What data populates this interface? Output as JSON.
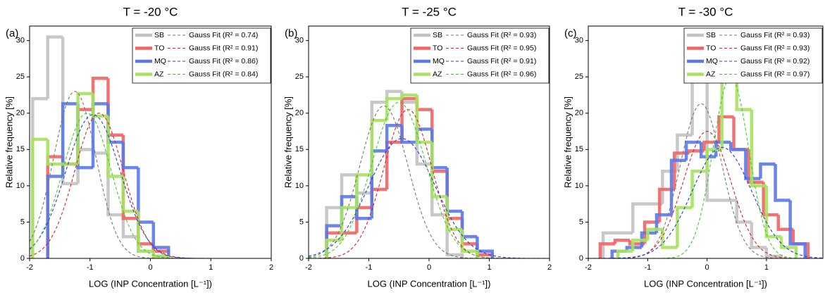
{
  "chart_data": [
    {
      "type": "histogram",
      "title": "T = -20 °C",
      "panel_label": "(a)",
      "x_label": "LOG (INP Concentration [L⁻¹])",
      "y_label": "Relative frequency [%]",
      "xlim": [
        -2,
        2
      ],
      "ylim": [
        0,
        32
      ],
      "xticks": [
        -2,
        -1,
        0,
        1,
        2
      ],
      "yticks": [
        0,
        5,
        10,
        15,
        20,
        25,
        30
      ],
      "series": [
        {
          "name": "SB",
          "color": "#c2c2c2",
          "bins": [
            -1.95,
            -1.7,
            -1.45,
            -1.2,
            -0.95,
            -0.7,
            -0.45,
            -0.2,
            0.05,
            0.3
          ],
          "values": [
            22,
            30.5,
            10.3,
            15,
            14.5,
            6,
            3,
            1,
            0.3
          ],
          "fit_label": "Gauss Fit (R² = 0.74)",
          "fit": {
            "peak": 23,
            "center": -1.25,
            "sigma": 0.35
          }
        },
        {
          "name": "TO",
          "color": "#f26464",
          "bins": [
            -1.7,
            -1.45,
            -1.2,
            -0.95,
            -0.7,
            -0.45,
            -0.2,
            0.05,
            0.3
          ],
          "values": [
            14,
            13,
            20.5,
            24.8,
            17,
            5.5,
            2,
            1
          ],
          "fit_label": "Gauss Fit (R² = 0.91)",
          "fit": {
            "peak": 20,
            "center": -0.85,
            "sigma": 0.4
          }
        },
        {
          "name": "MQ",
          "color": "#5a78ea",
          "bins": [
            -1.7,
            -1.45,
            -1.2,
            -0.95,
            -0.7,
            -0.45,
            -0.2,
            0.05,
            0.3
          ],
          "values": [
            11.3,
            21.3,
            12.5,
            21.3,
            16,
            12.5,
            5,
            1.5
          ],
          "fit_label": "Gauss Fit (R² = 0.86)",
          "fit": {
            "peak": 19.8,
            "center": -0.95,
            "sigma": 0.45
          }
        },
        {
          "name": "AZ",
          "color": "#a6e25e",
          "bins": [
            -1.95,
            -1.7,
            -1.45,
            -1.2,
            -0.95,
            -0.7,
            -0.45,
            -0.2,
            0.05,
            0.3
          ],
          "values": [
            16.4,
            13,
            13,
            22.7,
            19.6,
            11.3,
            6.5,
            1,
            0.3
          ],
          "fit_label": "Gauss Fit (R² = 0.84)",
          "fit": {
            "peak": 20,
            "center": -1.05,
            "sigma": 0.4
          }
        }
      ]
    },
    {
      "type": "histogram",
      "title": "T = -25 °C",
      "panel_label": "(b)",
      "x_label": "LOG (INP Concentration [L⁻¹])",
      "y_label": "Relative frequency [%]",
      "xlim": [
        -2,
        2
      ],
      "ylim": [
        0,
        32
      ],
      "xticks": [
        -2,
        -1,
        0,
        1,
        2
      ],
      "yticks": [
        0,
        5,
        10,
        15,
        20,
        25,
        30
      ],
      "series": [
        {
          "name": "SB",
          "color": "#c2c2c2",
          "bins": [
            -1.7,
            -1.45,
            -1.2,
            -0.95,
            -0.7,
            -0.45,
            -0.2,
            0.05,
            0.3,
            0.55
          ],
          "values": [
            7,
            11.5,
            9,
            21.5,
            23,
            21.5,
            13,
            6,
            0.5
          ],
          "fit_label": "Gauss Fit (R² = 0.93)",
          "fit": {
            "peak": 21,
            "center": -0.75,
            "sigma": 0.4
          }
        },
        {
          "name": "TO",
          "color": "#f26464",
          "bins": [
            -1.7,
            -1.45,
            -1.2,
            -0.95,
            -0.7,
            -0.45,
            -0.2,
            0.05,
            0.3,
            0.55,
            0.8,
            1.05
          ],
          "values": [
            3.5,
            3.5,
            7,
            9.5,
            16,
            22,
            20.5,
            12,
            5.5,
            2,
            0.5
          ],
          "fit_label": "Gauss Fit (R² = 0.95)",
          "fit": {
            "peak": 20.5,
            "center": -0.35,
            "sigma": 0.4
          }
        },
        {
          "name": "MQ",
          "color": "#5a78ea",
          "bins": [
            -1.7,
            -1.45,
            -1.2,
            -0.95,
            -0.7,
            -0.45,
            -0.2,
            0.05,
            0.3,
            0.55,
            0.8,
            1.05
          ],
          "values": [
            4.5,
            8.5,
            5.5,
            14.8,
            18.3,
            16,
            17.8,
            12.5,
            6.5,
            3,
            1
          ],
          "fit_label": "Gauss Fit (R² = 0.91)",
          "fit": {
            "peak": 16.5,
            "center": -0.45,
            "sigma": 0.55
          }
        },
        {
          "name": "AZ",
          "color": "#a6e25e",
          "bins": [
            -1.7,
            -1.45,
            -1.2,
            -0.95,
            -0.7,
            -0.45,
            -0.2,
            0.05,
            0.3,
            0.55,
            0.8
          ],
          "values": [
            2.5,
            7,
            11.5,
            19,
            22,
            22.5,
            16,
            8.5,
            4,
            1
          ],
          "fit_label": "Gauss Fit (R² = 0.96)",
          "fit": {
            "peak": 21.5,
            "center": -0.5,
            "sigma": 0.45
          }
        }
      ]
    },
    {
      "type": "histogram",
      "title": "T = -30 °C",
      "panel_label": "(c)",
      "x_label": "LOG (INP Concentration [L⁻¹])",
      "y_label": "Relative frequency [%]",
      "xlim": [
        -2,
        1.95
      ],
      "ylim": [
        0,
        32
      ],
      "xticks": [
        -2,
        -1,
        0,
        1
      ],
      "yticks": [
        0,
        5,
        10,
        15,
        20,
        25,
        30
      ],
      "series": [
        {
          "name": "SB",
          "color": "#c2c2c2",
          "bins": [
            -1.75,
            -1.5,
            -1.25,
            -1,
            -0.75,
            -0.5,
            -0.25,
            0,
            0.25,
            0.5,
            0.75,
            1,
            1.25
          ],
          "values": [
            3.5,
            3.5,
            7.5,
            7.5,
            12,
            17,
            24.3,
            8,
            8,
            5,
            1.5,
            0.3
          ],
          "fit_label": "Gauss Fit (R² = 0.93)",
          "fit": {
            "peak": 21.3,
            "center": -0.1,
            "sigma": 0.35
          }
        },
        {
          "name": "TO",
          "color": "#f26464",
          "bins": [
            -1.8,
            -1.55,
            -1.3,
            -1.05,
            -0.8,
            -0.55,
            -0.3,
            -0.05,
            0.2,
            0.45,
            0.7,
            0.95,
            1.2,
            1.45,
            1.7
          ],
          "values": [
            2,
            2.5,
            2,
            5,
            9.5,
            14.5,
            14.8,
            16,
            19.5,
            15,
            10.5,
            6,
            4,
            2
          ],
          "fit_label": "Gauss Fit (R² = 0.93)",
          "fit": {
            "peak": 17.5,
            "center": 0,
            "sigma": 0.4
          }
        },
        {
          "name": "MQ",
          "color": "#5a78ea",
          "bins": [
            -1.6,
            -1.35,
            -1.1,
            -0.85,
            -0.6,
            -0.35,
            -0.1,
            0.15,
            0.4,
            0.65,
            0.9,
            1.15,
            1.4,
            1.65
          ],
          "values": [
            1,
            1.5,
            3.5,
            6,
            13.5,
            16,
            14,
            16,
            15,
            11,
            13,
            8,
            2
          ],
          "fit_label": "Gauss Fit (R² = 0.92)",
          "fit": {
            "peak": 15.3,
            "center": 0.25,
            "sigma": 0.5
          }
        },
        {
          "name": "AZ",
          "color": "#a6e25e",
          "bins": [
            -1.5,
            -1.25,
            -1,
            -0.75,
            -0.5,
            -0.25,
            0,
            0.25,
            0.5,
            0.75,
            1,
            1.25,
            1.5
          ],
          "values": [
            1,
            2.5,
            4,
            1.5,
            7,
            12,
            15,
            24.5,
            20.5,
            10,
            3,
            1.5
          ],
          "fit_label": "Gauss Fit (R² = 0.97)",
          "fit": {
            "peak": 25,
            "center": 0.4,
            "sigma": 0.3
          }
        }
      ]
    }
  ]
}
